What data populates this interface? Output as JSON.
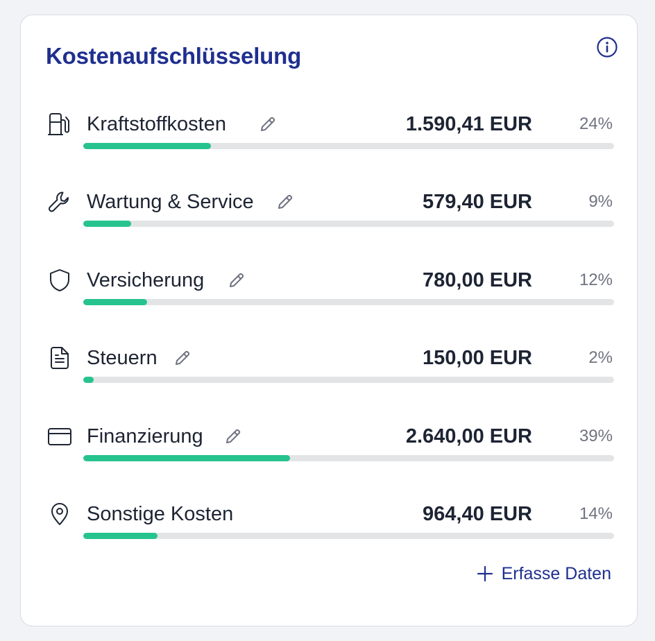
{
  "card": {
    "title": "Kostenaufschlüsselung"
  },
  "items": [
    {
      "icon": "fuel-pump-icon",
      "label": "Kraftstoffkosten",
      "editable": true,
      "amount": "1.590,41 EUR",
      "percent_label": "24%",
      "share": 0.24
    },
    {
      "icon": "wrench-icon",
      "label": "Wartung & Service",
      "editable": true,
      "amount": "579,40 EUR",
      "percent_label": "9%",
      "share": 0.09
    },
    {
      "icon": "shield-icon",
      "label": "Versicherung",
      "editable": true,
      "amount": "780,00 EUR",
      "percent_label": "12%",
      "share": 0.12
    },
    {
      "icon": "document-icon",
      "label": "Steuern",
      "editable": true,
      "amount": "150,00 EUR",
      "percent_label": "2%",
      "share": 0.02
    },
    {
      "icon": "credit-card-icon",
      "label": "Finanzierung",
      "editable": true,
      "amount": "2.640,00 EUR",
      "percent_label": "39%",
      "share": 0.39
    },
    {
      "icon": "location-pin-icon",
      "label": "Sonstige Kosten",
      "editable": false,
      "amount": "964,40 EUR",
      "percent_label": "14%",
      "share": 0.14
    }
  ],
  "actions": {
    "add_label": "Erfasse Daten"
  },
  "colors": {
    "title": "#1f2f8f",
    "bar_fill": "#27c38f",
    "bar_track": "#e3e4e6",
    "text": "#1d2433",
    "muted": "#6f7380"
  }
}
